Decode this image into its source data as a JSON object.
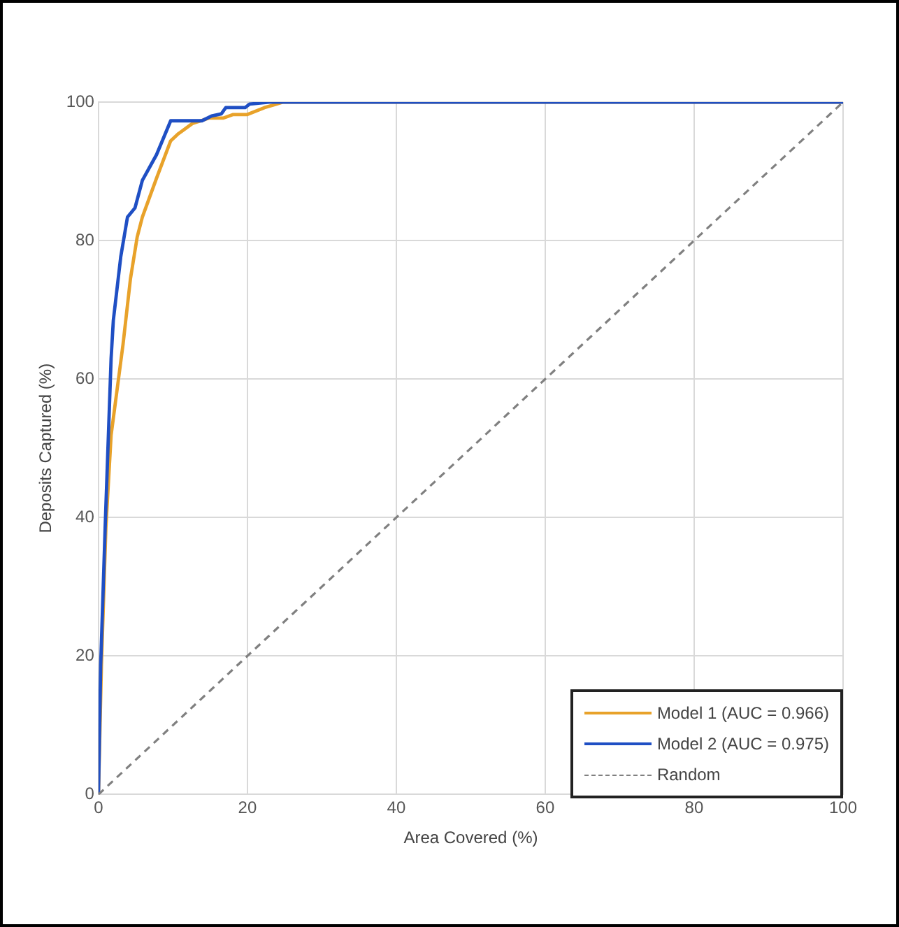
{
  "chart_data": {
    "type": "line",
    "xlabel": "Area Covered (%)",
    "ylabel": "Deposits Captured (%)",
    "xlim": [
      0,
      100
    ],
    "ylim": [
      0,
      100
    ],
    "xticks": [
      0,
      20,
      40,
      60,
      80,
      100
    ],
    "yticks": [
      0,
      20,
      40,
      60,
      80,
      100
    ],
    "grid": true,
    "legend": "bottom right",
    "marker": "none",
    "series": [
      {
        "name": "Model 1 (AUC = 0.966)",
        "color": "#e8a22a",
        "line_style": "solid",
        "x": [
          0,
          0.4,
          1.0,
          1.7,
          3.3,
          4.3,
          5.2,
          5.9,
          7.8,
          9.7,
          10.7,
          12.6,
          14.9,
          16.8,
          18.1,
          20,
          22.3,
          23.9,
          24.8,
          100
        ],
        "values": [
          0,
          18.7,
          38.6,
          51.9,
          65,
          74.5,
          80.5,
          83.4,
          89,
          94.4,
          95.4,
          96.9,
          97.7,
          97.7,
          98.2,
          98.2,
          99.2,
          99.7,
          100,
          100
        ]
      },
      {
        "name": "Model 2 (AUC = 0.975)",
        "color": "#1f4fc4",
        "line_style": "solid",
        "x": [
          0,
          0.3,
          0.9,
          1.7,
          2.0,
          3.0,
          3.9,
          4.9,
          5.9,
          7.8,
          9.7,
          13.9,
          15.2,
          16.5,
          17.1,
          19.7,
          20.3,
          22.9,
          100
        ],
        "values": [
          0,
          18.7,
          38.6,
          63,
          68.5,
          77.7,
          83.4,
          84.7,
          88.7,
          92.4,
          97.3,
          97.3,
          98,
          98.3,
          99.2,
          99.2,
          99.7,
          100,
          100
        ]
      },
      {
        "name": "Random",
        "color": "#808080",
        "line_style": "dashed",
        "x": [
          0,
          100
        ],
        "values": [
          0,
          100
        ]
      }
    ]
  }
}
